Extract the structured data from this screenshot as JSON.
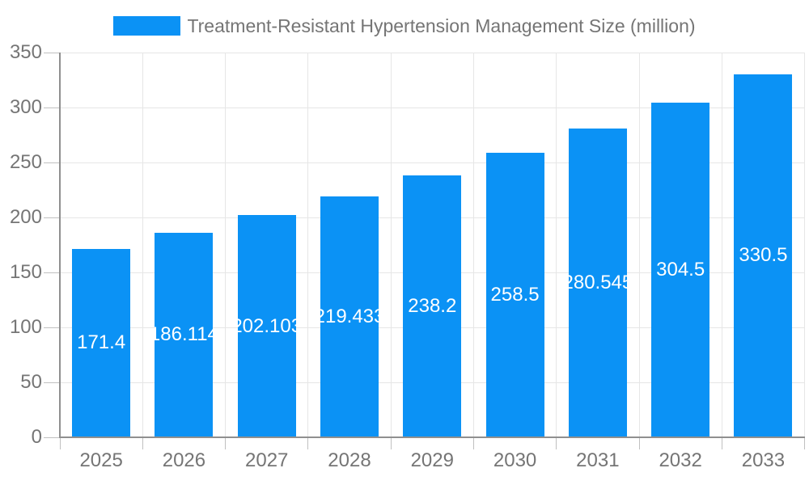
{
  "chart_data": {
    "type": "bar",
    "title": "Treatment-Resistant Hypertension Management Size (million)",
    "legend": {
      "label": "Treatment-Resistant Hypertension Management Size (million)",
      "position": "top-center",
      "swatch_color": "#0b92f5"
    },
    "categories": [
      "2025",
      "2026",
      "2027",
      "2028",
      "2029",
      "2030",
      "2031",
      "2032",
      "2033"
    ],
    "values": [
      171.4,
      186.114,
      202.103,
      219.433,
      238.2,
      258.5,
      280.545,
      304.5,
      330.5
    ],
    "value_labels": [
      "171.4",
      "186.114",
      "202.103",
      "219.433",
      "238.2",
      "258.5",
      "280.545",
      "304.5",
      "330.5"
    ],
    "xlabel": "",
    "ylabel": "",
    "ylim": [
      0,
      350
    ],
    "yticks": [
      0,
      50,
      100,
      150,
      200,
      250,
      300,
      350
    ],
    "grid": true,
    "colors": {
      "bar": "#0b92f5",
      "value_label_text": "#ffffff",
      "axis_line": "#8f8f8f",
      "gridline": "#e6e6e6",
      "tick_mark": "#c0c0c0",
      "tick_label_text": "#757575",
      "legend_text": "#757575",
      "background": "#ffffff"
    }
  }
}
